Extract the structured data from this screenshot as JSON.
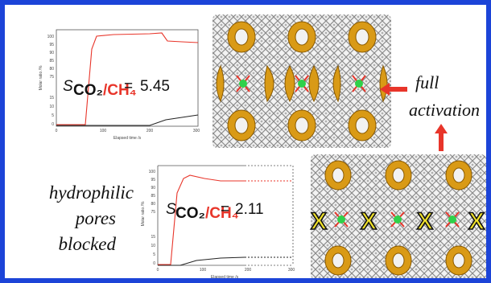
{
  "labels": {
    "full_activation_line1": "full",
    "full_activation_line2": "activation",
    "hydrophilic_line1": "hydrophilic",
    "hydrophilic_line2": "pores",
    "hydrophilic_line3": "blocked"
  },
  "plot_top": {
    "selectivity_label": "S",
    "subscript_co2": "CO₂",
    "subscript_slash": "/",
    "subscript_ch4": "CH₄",
    "equals": "=",
    "value": "5.45",
    "ylabel": "Molar ratio /%",
    "xlabel": "Elapsed time /s",
    "yticks": [
      "100",
      "95",
      "90",
      "85",
      "80",
      "75",
      "15",
      "10",
      "5",
      "0"
    ],
    "xticks": [
      "0",
      "100",
      "200",
      "300"
    ]
  },
  "plot_bottom": {
    "selectivity_label": "S",
    "subscript_co2": "CO₂",
    "subscript_slash": "/",
    "subscript_ch4": "CH₄",
    "equals": "=",
    "value": "2.11",
    "ylabel": "Molar ratio /%",
    "xlabel": "Elapsed time /s",
    "yticks": [
      "100",
      "95",
      "90",
      "85",
      "80",
      "75",
      "15",
      "10",
      "5",
      "0"
    ],
    "xticks": [
      "0",
      "100",
      "200",
      "300"
    ]
  },
  "blocked_marker": "X",
  "colors": {
    "border": "#1c44d8",
    "arrow": "#e8352a",
    "co2_curve": "#e8352a",
    "ch4_curve": "#222222",
    "cage_gold": "#d99a16",
    "framework_gray": "#9a9a9a",
    "guest_green": "#2fd14a",
    "blocker_yellow": "#f2e32a"
  },
  "icons": [
    "red-arrow-left-icon",
    "red-arrow-up-icon",
    "x-block-icon"
  ]
}
